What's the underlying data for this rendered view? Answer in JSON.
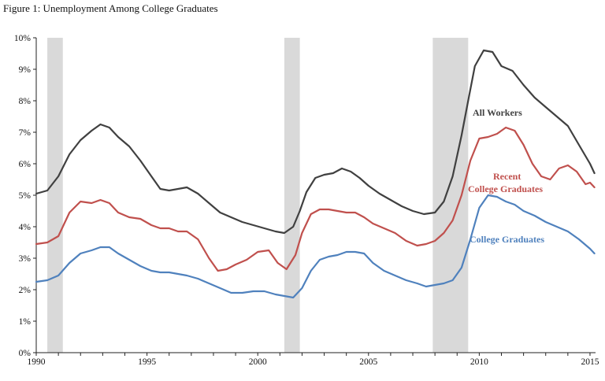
{
  "figure_title": "Figure 1: Unemployment Among College Graduates",
  "chart_data": {
    "type": "line",
    "title": "Figure 1: Unemployment Among College Graduates",
    "xlabel": "",
    "ylabel": "",
    "xlim": [
      1990,
      2015.25
    ],
    "ylim": [
      0,
      10
    ],
    "x_ticks": [
      1990,
      1995,
      2000,
      2005,
      2010,
      2015
    ],
    "y_ticks": [
      "0%",
      "1%",
      "2%",
      "3%",
      "4%",
      "5%",
      "6%",
      "7%",
      "8%",
      "9%",
      "10%"
    ],
    "grid": false,
    "recessions": [
      [
        1990.5,
        1991.2
      ],
      [
        2001.2,
        2001.9
      ],
      [
        2007.9,
        2009.5
      ]
    ],
    "recession_color": "#d9d9d9",
    "series": [
      {
        "name": "All Workers",
        "color": "#404040",
        "x": [
          1990.0,
          1990.5,
          1991.0,
          1991.5,
          1992.0,
          1992.5,
          1992.9,
          1993.3,
          1993.7,
          1994.2,
          1994.7,
          1995.2,
          1995.6,
          1996.0,
          1996.4,
          1996.8,
          1997.3,
          1997.8,
          1998.3,
          1998.8,
          1999.3,
          1999.8,
          2000.3,
          2000.8,
          2001.2,
          2001.6,
          2001.9,
          2002.2,
          2002.6,
          2003.0,
          2003.4,
          2003.8,
          2004.2,
          2004.6,
          2005.0,
          2005.5,
          2006.0,
          2006.5,
          2007.0,
          2007.5,
          2008.0,
          2008.4,
          2008.8,
          2009.2,
          2009.5,
          2009.8,
          2010.2,
          2010.6,
          2011.0,
          2011.5,
          2012.0,
          2012.5,
          2013.0,
          2013.5,
          2014.0,
          2014.5,
          2015.0,
          2015.2
        ],
        "y": [
          5.05,
          5.15,
          5.6,
          6.3,
          6.75,
          7.05,
          7.25,
          7.15,
          6.85,
          6.55,
          6.1,
          5.6,
          5.2,
          5.15,
          5.2,
          5.25,
          5.05,
          4.75,
          4.45,
          4.3,
          4.15,
          4.05,
          3.95,
          3.85,
          3.8,
          4.0,
          4.5,
          5.1,
          5.55,
          5.65,
          5.7,
          5.85,
          5.75,
          5.55,
          5.3,
          5.05,
          4.85,
          4.65,
          4.5,
          4.4,
          4.45,
          4.8,
          5.6,
          6.9,
          8.0,
          9.1,
          9.6,
          9.55,
          9.1,
          8.95,
          8.5,
          8.1,
          7.8,
          7.5,
          7.2,
          6.6,
          6.0,
          5.7
        ]
      },
      {
        "name": "Recent College Graduates",
        "color": "#c0504d",
        "x": [
          1990.0,
          1990.5,
          1991.0,
          1991.5,
          1992.0,
          1992.5,
          1992.9,
          1993.3,
          1993.7,
          1994.2,
          1994.7,
          1995.2,
          1995.6,
          1996.0,
          1996.4,
          1996.8,
          1997.3,
          1997.8,
          1998.2,
          1998.6,
          1999.0,
          1999.5,
          2000.0,
          2000.5,
          2000.9,
          2001.3,
          2001.7,
          2002.0,
          2002.4,
          2002.8,
          2003.2,
          2003.6,
          2004.0,
          2004.4,
          2004.8,
          2005.2,
          2005.7,
          2006.2,
          2006.7,
          2007.2,
          2007.6,
          2008.0,
          2008.4,
          2008.8,
          2009.2,
          2009.6,
          2010.0,
          2010.4,
          2010.8,
          2011.2,
          2011.6,
          2012.0,
          2012.4,
          2012.8,
          2013.2,
          2013.6,
          2014.0,
          2014.4,
          2014.8,
          2015.0,
          2015.2
        ],
        "y": [
          3.45,
          3.5,
          3.7,
          4.45,
          4.8,
          4.75,
          4.85,
          4.75,
          4.45,
          4.3,
          4.25,
          4.05,
          3.95,
          3.95,
          3.85,
          3.85,
          3.6,
          3.0,
          2.6,
          2.65,
          2.8,
          2.95,
          3.2,
          3.25,
          2.85,
          2.65,
          3.1,
          3.8,
          4.4,
          4.55,
          4.55,
          4.5,
          4.45,
          4.45,
          4.3,
          4.1,
          3.95,
          3.8,
          3.55,
          3.4,
          3.45,
          3.55,
          3.8,
          4.2,
          5.0,
          6.1,
          6.8,
          6.85,
          6.95,
          7.15,
          7.05,
          6.6,
          6.0,
          5.6,
          5.5,
          5.85,
          5.95,
          5.75,
          5.35,
          5.4,
          5.25
        ]
      },
      {
        "name": "College Graduates",
        "color": "#4f81bd",
        "x": [
          1990.0,
          1990.5,
          1991.0,
          1991.5,
          1992.0,
          1992.5,
          1992.9,
          1993.3,
          1993.7,
          1994.2,
          1994.7,
          1995.2,
          1995.6,
          1996.0,
          1996.4,
          1996.8,
          1997.3,
          1997.8,
          1998.3,
          1998.8,
          1999.3,
          1999.8,
          2000.3,
          2000.8,
          2001.2,
          2001.6,
          2002.0,
          2002.4,
          2002.8,
          2003.2,
          2003.6,
          2004.0,
          2004.4,
          2004.8,
          2005.2,
          2005.7,
          2006.2,
          2006.7,
          2007.2,
          2007.6,
          2008.0,
          2008.4,
          2008.8,
          2009.2,
          2009.6,
          2010.0,
          2010.4,
          2010.8,
          2011.2,
          2011.6,
          2012.0,
          2012.5,
          2013.0,
          2013.5,
          2014.0,
          2014.5,
          2015.0,
          2015.2
        ],
        "y": [
          2.25,
          2.3,
          2.45,
          2.85,
          3.15,
          3.25,
          3.35,
          3.35,
          3.15,
          2.95,
          2.75,
          2.6,
          2.55,
          2.55,
          2.5,
          2.45,
          2.35,
          2.2,
          2.05,
          1.9,
          1.9,
          1.95,
          1.95,
          1.85,
          1.8,
          1.75,
          2.05,
          2.6,
          2.95,
          3.05,
          3.1,
          3.2,
          3.2,
          3.15,
          2.85,
          2.6,
          2.45,
          2.3,
          2.2,
          2.1,
          2.15,
          2.2,
          2.3,
          2.7,
          3.6,
          4.6,
          5.0,
          4.95,
          4.8,
          4.7,
          4.5,
          4.35,
          4.15,
          4.0,
          3.85,
          3.6,
          3.3,
          3.15
        ]
      }
    ],
    "annotations": [
      {
        "text": "All Workers",
        "series": "All Workers"
      },
      {
        "text": "Recent",
        "series": "Recent College Graduates"
      },
      {
        "text": "College Graduates",
        "series": "Recent College Graduates"
      },
      {
        "text": "College Graduates",
        "series": "College Graduates"
      }
    ]
  }
}
